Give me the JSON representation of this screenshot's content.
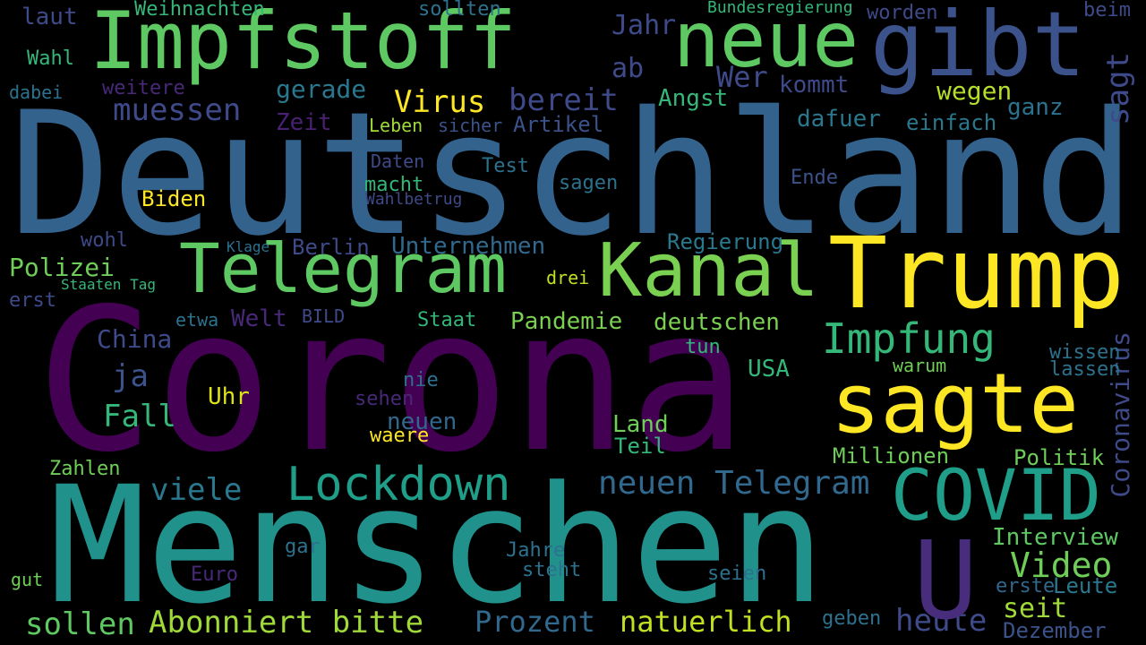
{
  "words": [
    {
      "text": "Deutschland",
      "color": "#33638d"
    },
    {
      "text": "Corona",
      "color": "#440154"
    },
    {
      "text": "Menschen",
      "color": "#21918c"
    },
    {
      "text": "Trump",
      "color": "#fde725"
    },
    {
      "text": "Impfstoff",
      "color": "#5ec962"
    },
    {
      "text": "gibt",
      "color": "#3b528b"
    },
    {
      "text": "neue",
      "color": "#5ec962"
    },
    {
      "text": "Telegram",
      "color": "#5ec962"
    },
    {
      "text": "Kanal",
      "color": "#7ad151"
    },
    {
      "text": "sagte",
      "color": "#fde725"
    },
    {
      "text": "COVID",
      "color": "#1f9e89"
    },
    {
      "text": "Lockdown",
      "color": "#1f9e89"
    },
    {
      "text": "Impfung",
      "color": "#35b779"
    },
    {
      "text": "neuen Telegram",
      "color": "#31688e"
    },
    {
      "text": "Abonniert bitte",
      "color": "#a0da39"
    },
    {
      "text": "natuerlich",
      "color": "#c2df23"
    },
    {
      "text": "Prozent",
      "color": "#31688e"
    },
    {
      "text": "heute",
      "color": "#3e4a89"
    },
    {
      "text": "sollen",
      "color": "#5ec962"
    },
    {
      "text": "viele",
      "color": "#2a788e"
    },
    {
      "text": "Video",
      "color": "#6ece58"
    },
    {
      "text": "U",
      "color": "#472d7b"
    },
    {
      "text": "Virus",
      "color": "#fde725"
    },
    {
      "text": "bereit",
      "color": "#3e4a89"
    },
    {
      "text": "muessen",
      "color": "#3e4a89"
    },
    {
      "text": "Jahr",
      "color": "#3e4a89"
    },
    {
      "text": "ab",
      "color": "#3e4a89"
    },
    {
      "text": "Wer",
      "color": "#3e4a89"
    },
    {
      "text": "wegen",
      "color": "#b5de2b"
    },
    {
      "text": "sagt",
      "color": "#3e4a89"
    },
    {
      "text": "ganz",
      "color": "#2c728e"
    },
    {
      "text": "gerade",
      "color": "#2a788e"
    },
    {
      "text": "Angst",
      "color": "#35b779"
    },
    {
      "text": "kommt",
      "color": "#3e4a89"
    },
    {
      "text": "dafuer",
      "color": "#2a788e"
    },
    {
      "text": "einfach",
      "color": "#2a788e"
    },
    {
      "text": "Zeit",
      "color": "#482173"
    },
    {
      "text": "Leben",
      "color": "#a0da39"
    },
    {
      "text": "sicher",
      "color": "#3b528b"
    },
    {
      "text": "Artikel",
      "color": "#3b528b"
    },
    {
      "text": "Polizei",
      "color": "#6ece58"
    },
    {
      "text": "Unternehmen",
      "color": "#31688e"
    },
    {
      "text": "Berlin",
      "color": "#3e4a89"
    },
    {
      "text": "Regierung",
      "color": "#2a788e"
    },
    {
      "text": "Biden",
      "color": "#fde725"
    },
    {
      "text": "China",
      "color": "#3e4a89"
    },
    {
      "text": "Welt",
      "color": "#482878"
    },
    {
      "text": "Pandemie",
      "color": "#7ad151"
    },
    {
      "text": "deutschen",
      "color": "#7ad151"
    },
    {
      "text": "Fall",
      "color": "#35b779"
    },
    {
      "text": "ja",
      "color": "#3b528b"
    },
    {
      "text": "Uhr",
      "color": "#dde318"
    },
    {
      "text": "neuen",
      "color": "#31688e"
    },
    {
      "text": "Zahlen",
      "color": "#6ece58"
    },
    {
      "text": "USA",
      "color": "#35b779"
    },
    {
      "text": "Land",
      "color": "#6ece58"
    },
    {
      "text": "Teil",
      "color": "#35b779"
    },
    {
      "text": "Millionen",
      "color": "#6ece58"
    },
    {
      "text": "Politik",
      "color": "#6ece58"
    },
    {
      "text": "seit",
      "color": "#a0da39"
    },
    {
      "text": "Interview",
      "color": "#5ec962"
    },
    {
      "text": "Leute",
      "color": "#2a788e"
    },
    {
      "text": "erste",
      "color": "#31688e"
    },
    {
      "text": "Dezember",
      "color": "#3b528b"
    },
    {
      "text": "Coronavirus",
      "color": "#3e4a89"
    },
    {
      "text": "Test",
      "color": "#2c728e"
    },
    {
      "text": "Daten",
      "color": "#3e4a89"
    },
    {
      "text": "macht",
      "color": "#35b779"
    },
    {
      "text": "sagen",
      "color": "#2c728e"
    },
    {
      "text": "Ende",
      "color": "#3b528b"
    },
    {
      "text": "Wahlbetrug",
      "color": "#3e4a89"
    },
    {
      "text": "wohl",
      "color": "#3e4a89"
    },
    {
      "text": "drei",
      "color": "#c2df23"
    },
    {
      "text": "Staat",
      "color": "#35b779"
    },
    {
      "text": "BILD",
      "color": "#3e4a89"
    },
    {
      "text": "etwa",
      "color": "#2c728e"
    },
    {
      "text": "erst",
      "color": "#3e4a89"
    },
    {
      "text": "laut",
      "color": "#3e4a89"
    },
    {
      "text": "Weihnachten",
      "color": "#35b779"
    },
    {
      "text": "sollten",
      "color": "#2c728e"
    },
    {
      "text": "Bundesregierung",
      "color": "#35b779"
    },
    {
      "text": "worden",
      "color": "#3e4a89"
    },
    {
      "text": "beim",
      "color": "#3e4a89"
    },
    {
      "text": "Wahl",
      "color": "#35b779"
    },
    {
      "text": "dabei",
      "color": "#2c728e"
    },
    {
      "text": "weitere",
      "color": "#482878"
    },
    {
      "text": "wissen",
      "color": "#2c728e"
    },
    {
      "text": "lassen",
      "color": "#2c728e"
    },
    {
      "text": "warum",
      "color": "#6ece58"
    },
    {
      "text": "gut",
      "color": "#6ece58"
    },
    {
      "text": "geben",
      "color": "#2c728e"
    },
    {
      "text": "seien",
      "color": "#2c728e"
    },
    {
      "text": "steht",
      "color": "#2c728e"
    },
    {
      "text": "Jahre",
      "color": "#2c728e"
    },
    {
      "text": "Euro",
      "color": "#482878"
    },
    {
      "text": "gar",
      "color": "#2c728e"
    },
    {
      "text": "nie",
      "color": "#2c728e"
    },
    {
      "text": "sehen",
      "color": "#482878"
    },
    {
      "text": "waere",
      "color": "#fde725"
    },
    {
      "text": "tun",
      "color": "#35b779"
    },
    {
      "text": "Staaten Tag",
      "color": "#35b779"
    },
    {
      "text": "Klage",
      "color": "#2c728e"
    }
  ]
}
